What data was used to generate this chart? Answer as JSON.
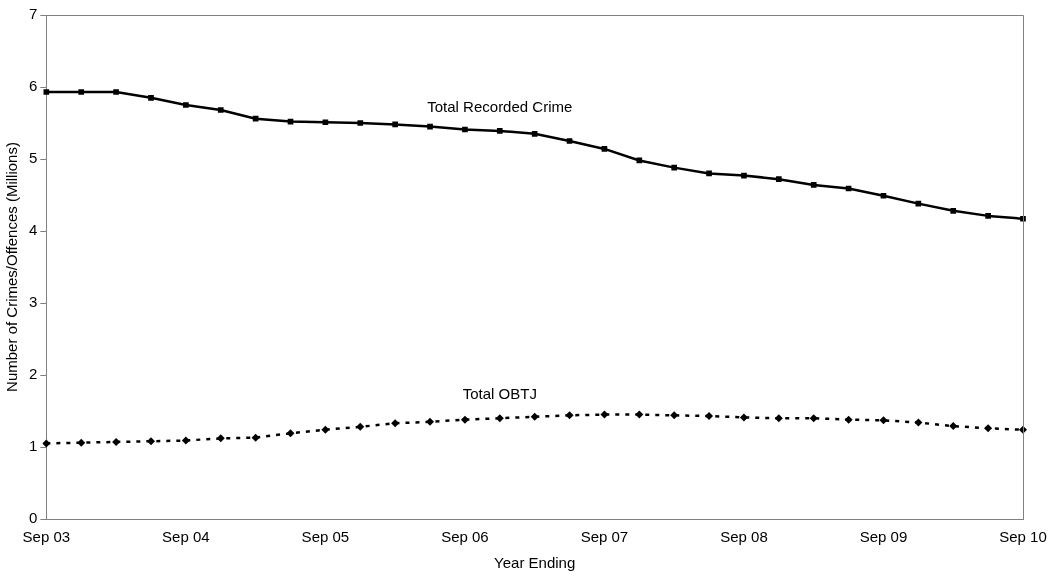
{
  "chart_data": {
    "type": "line",
    "xlabel": "Year Ending",
    "ylabel": "Number of Crimes/Offences (Millions)",
    "categories": [
      "Sep 03",
      null,
      null,
      null,
      "Sep 04",
      null,
      null,
      null,
      "Sep 05",
      null,
      null,
      null,
      "Sep 06",
      null,
      null,
      null,
      "Sep 07",
      null,
      null,
      null,
      "Sep 08",
      null,
      null,
      null,
      "Sep 09",
      null,
      null,
      null,
      "Sep 10"
    ],
    "series": [
      {
        "name": "Total Recorded Crime",
        "color": "#000000",
        "marker": "square",
        "line_style": "solid",
        "values": [
          5.93,
          5.93,
          5.93,
          5.85,
          5.75,
          5.68,
          5.56,
          5.52,
          5.51,
          5.5,
          5.48,
          5.45,
          5.41,
          5.39,
          5.35,
          5.25,
          5.14,
          4.98,
          4.88,
          4.8,
          4.77,
          4.72,
          4.64,
          4.59,
          4.49,
          4.38,
          4.28,
          4.21,
          4.17
        ]
      },
      {
        "name": "Total OBTJ",
        "color": "#000000",
        "marker": "diamond",
        "line_style": "dotted",
        "values": [
          1.05,
          1.06,
          1.07,
          1.08,
          1.09,
          1.12,
          1.13,
          1.19,
          1.24,
          1.28,
          1.33,
          1.35,
          1.38,
          1.4,
          1.42,
          1.44,
          1.45,
          1.45,
          1.44,
          1.43,
          1.41,
          1.4,
          1.4,
          1.38,
          1.37,
          1.34,
          1.29,
          1.26,
          1.24
        ]
      }
    ],
    "ylim": [
      0,
      7
    ],
    "yticks": [
      0,
      1,
      2,
      3,
      4,
      5,
      6,
      7
    ],
    "grid": false,
    "legend": false
  }
}
